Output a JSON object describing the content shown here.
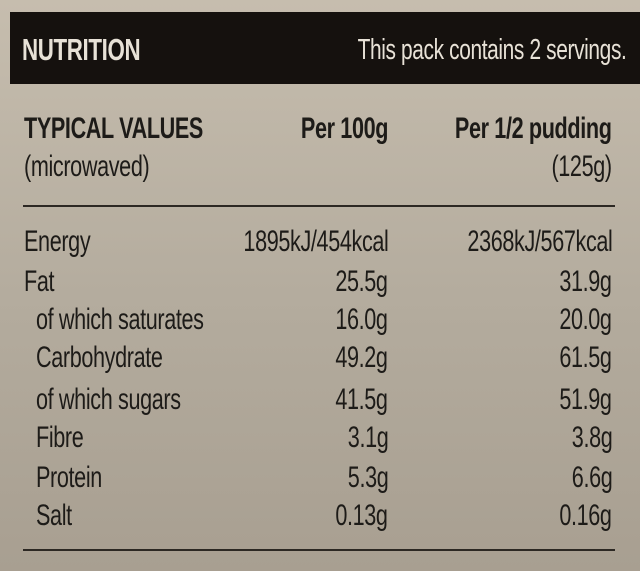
{
  "header": {
    "title": "NUTRITION",
    "note": "This pack contains 2 servings."
  },
  "columns": {
    "label_line1": "TYPICAL VALUES",
    "label_line2": "(microwaved)",
    "per100": "Per 100g",
    "perserving_line1": "Per 1/2 pudding",
    "perserving_line2": "(125g)"
  },
  "rows": [
    {
      "nutrient": "Energy",
      "per100": "1895kJ/454kcal",
      "perserving": "2368kJ/567kcal"
    },
    {
      "nutrient": "Fat",
      "per100": "25.5g",
      "perserving": "31.9g"
    },
    {
      "nutrient": "of which saturates",
      "per100": "16.0g",
      "perserving": "20.0g"
    },
    {
      "nutrient": "Carbohydrate",
      "per100": "49.2g",
      "perserving": "61.5g"
    },
    {
      "nutrient": "of which sugars",
      "per100": "41.5g",
      "perserving": "51.9g"
    },
    {
      "nutrient": "Fibre",
      "per100": "3.1g",
      "perserving": "3.8g"
    },
    {
      "nutrient": "Protein",
      "per100": "5.3g",
      "perserving": "6.6g"
    },
    {
      "nutrient": "Salt",
      "per100": "0.13g",
      "perserving": "0.16g"
    }
  ]
}
